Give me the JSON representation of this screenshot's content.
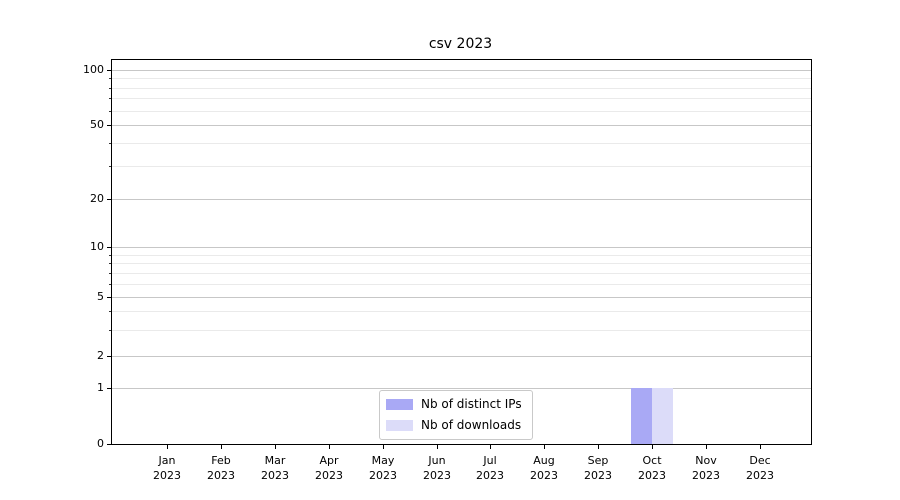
{
  "chart_data": {
    "type": "bar",
    "title": "csv 2023",
    "xlabel": "",
    "ylabel": "",
    "yscale": "symlog",
    "ylim": [
      0,
      113
    ],
    "grid": true,
    "legend_position": "lower center",
    "yticks": [
      0,
      1,
      2,
      5,
      10,
      20,
      50,
      100
    ],
    "yminorticks": [
      3,
      4,
      6,
      7,
      8,
      9,
      30,
      40,
      60,
      70,
      80,
      90
    ],
    "categories": [
      {
        "month": "Jan",
        "year": "2023"
      },
      {
        "month": "Feb",
        "year": "2023"
      },
      {
        "month": "Mar",
        "year": "2023"
      },
      {
        "month": "Apr",
        "year": "2023"
      },
      {
        "month": "May",
        "year": "2023"
      },
      {
        "month": "Jun",
        "year": "2023"
      },
      {
        "month": "Jul",
        "year": "2023"
      },
      {
        "month": "Aug",
        "year": "2023"
      },
      {
        "month": "Sep",
        "year": "2023"
      },
      {
        "month": "Oct",
        "year": "2023"
      },
      {
        "month": "Nov",
        "year": "2023"
      },
      {
        "month": "Dec",
        "year": "2023"
      }
    ],
    "series": [
      {
        "name": "Nb of distinct IPs",
        "color": "#a9a9f5",
        "values": [
          0,
          0,
          0,
          0,
          0,
          0,
          0,
          0,
          0,
          1,
          0,
          0
        ]
      },
      {
        "name": "Nb of downloads",
        "color": "#dcdcf9",
        "values": [
          0,
          0,
          0,
          0,
          0,
          0,
          0,
          0,
          0,
          1,
          0,
          0
        ]
      }
    ],
    "colors": {
      "spine": "#000000",
      "grid_major": "#c7c7c7",
      "grid_minor": "#eaeaea",
      "background": "#ffffff"
    }
  }
}
